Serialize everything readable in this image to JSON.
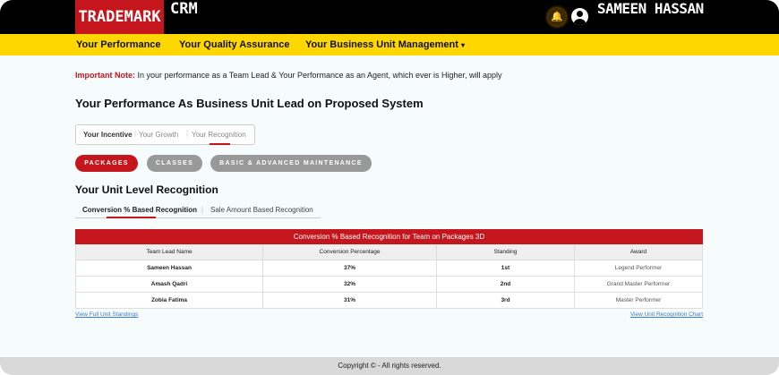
{
  "header": {
    "logo_brand": "TRADEMARK",
    "logo_suffix": "CRM",
    "user_name": "SAMEEN HASSAN",
    "icons": [
      "bell-icon",
      "user-icon"
    ]
  },
  "nav": {
    "items": [
      {
        "label": "Your Performance"
      },
      {
        "label": "Your Quality Assurance"
      },
      {
        "label": "Your Business Unit Management",
        "active": true,
        "dropdown": "▾"
      }
    ],
    "active_color": "#c4161c",
    "bg_color": "#ffd700"
  },
  "note": {
    "label": "Important Note:",
    "text": " In your performance as a Team Lead & Your Performance as an Agent, which ever is Higher, will apply"
  },
  "page_title": "Your Performance As Business Unit Lead on Proposed System",
  "segment_tabs": [
    {
      "label": "Your Incentive"
    },
    {
      "label": "Your Growth"
    },
    {
      "label": "Your Recognition",
      "active": true
    }
  ],
  "category_pills": [
    {
      "label": "PACKAGES",
      "active": true
    },
    {
      "label": "CLASSES"
    },
    {
      "label": "BASIC & ADVANCED MAINTENANCE"
    }
  ],
  "section_title": "Your Unit Level Recognition",
  "sub_tabs": [
    {
      "label": "Conversion % Based Recognition",
      "active": true
    },
    {
      "label": "Sale Amount Based Recognition"
    }
  ],
  "table": {
    "title": "Conversion % Based Recognition for Team on Packages 3D",
    "columns": [
      "Team Lead Name",
      "Conversion Percentage",
      "Standing",
      "Award"
    ],
    "rows": [
      [
        "Sameen Hassan",
        "37%",
        "1st",
        "Legend Performer"
      ],
      [
        "Amash Qadri",
        "32%",
        "2nd",
        "Grand Master Performer"
      ],
      [
        "Zobia Fatima",
        "31%",
        "3rd",
        "Master Performer"
      ]
    ]
  },
  "links": {
    "left": "View Full Unit Standings",
    "right": "View Unit Recognition Chart"
  },
  "footer": "Copyright © - All rights reserved."
}
